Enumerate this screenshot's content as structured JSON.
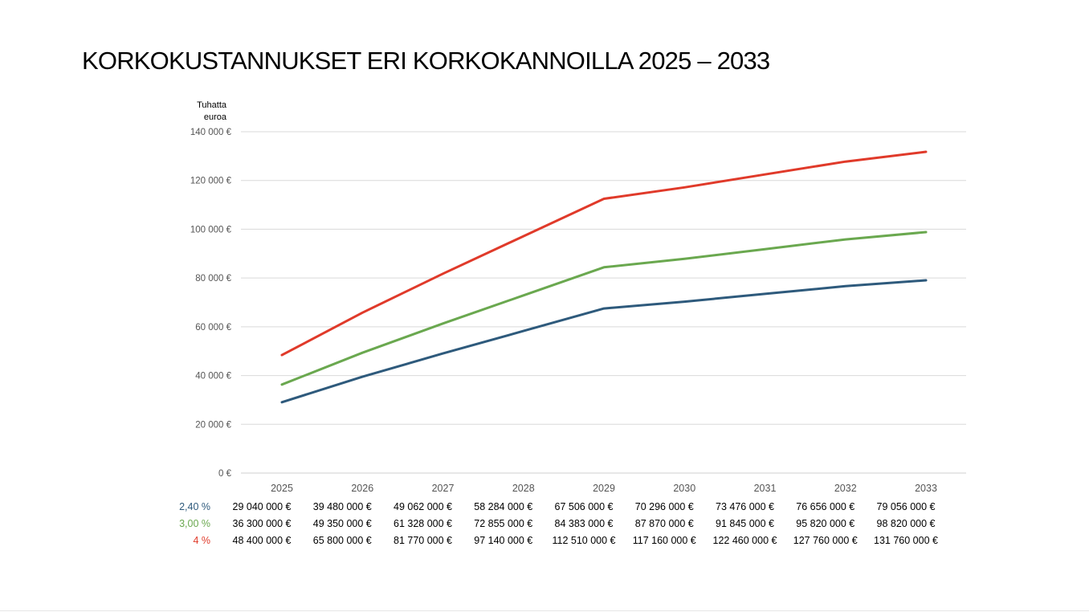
{
  "title": "KORKOKUSTANNUKSET ERI KORKOKANNOILLA 2025 – 2033",
  "unit_label": [
    "Tuhatta",
    "euroa"
  ],
  "colors": {
    "series_blue": "#2e5a7c",
    "series_green": "#6aa84f",
    "series_red": "#e03a2a",
    "grid": "#d9d9d9"
  },
  "chart_data": {
    "type": "line",
    "categories": [
      "2025",
      "2026",
      "2027",
      "2028",
      "2029",
      "2030",
      "2031",
      "2032",
      "2033"
    ],
    "ylim": [
      0,
      140000
    ],
    "yticks": [
      0,
      20000,
      40000,
      60000,
      80000,
      100000,
      120000,
      140000
    ],
    "ytick_labels": [
      "0 €",
      "20 000 €",
      "40 000 €",
      "60 000 €",
      "80 000 €",
      "100 000 €",
      "120 000 €",
      "140 000 €"
    ],
    "ylabel": "Tuhatta euroa",
    "grid": true,
    "legend": "none",
    "series": [
      {
        "name": "2,40 %",
        "color": "#2e5a7c",
        "values": [
          29040,
          39480,
          49062,
          58284,
          67506,
          70296,
          73476,
          76656,
          79056
        ],
        "table": [
          "29 040 000 €",
          "39 480 000 €",
          "49 062 000 €",
          "58 284 000 €",
          "67 506 000 €",
          "70 296 000 €",
          "73 476 000 €",
          "76 656 000 €",
          "79 056 000 €"
        ]
      },
      {
        "name": "3,00 %",
        "color": "#6aa84f",
        "values": [
          36300,
          49350,
          61328,
          72855,
          84383,
          87870,
          91845,
          95820,
          98820
        ],
        "table": [
          "36 300 000 €",
          "49 350 000 €",
          "61 328 000 €",
          "72 855 000 €",
          "84 383 000 €",
          "87 870 000 €",
          "91 845 000 €",
          "95 820 000 €",
          "98 820 000 €"
        ]
      },
      {
        "name": "4 %",
        "color": "#e03a2a",
        "values": [
          48400,
          65800,
          81770,
          97140,
          112510,
          117160,
          122460,
          127760,
          131760
        ],
        "table": [
          "48 400 000 €",
          "65 800 000 €",
          "81 770 000 €",
          "97 140 000 €",
          "112 510 000 €",
          "117 160 000 €",
          "122 460 000 €",
          "127 760 000 €",
          "131 760 000 €"
        ]
      }
    ]
  }
}
